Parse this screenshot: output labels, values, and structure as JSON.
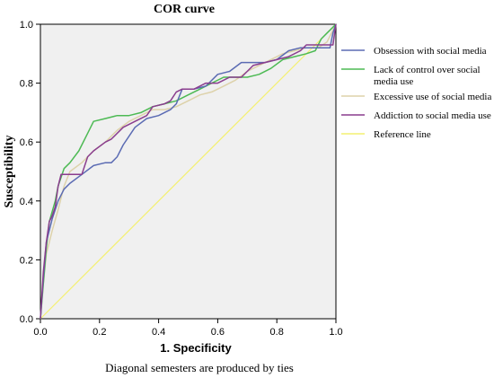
{
  "chart_data": {
    "type": "line",
    "title": "COR curve",
    "xlabel": "1.   Specificity",
    "ylabel": "Susceptibility",
    "xlim": [
      0,
      1
    ],
    "ylim": [
      0,
      1
    ],
    "x_ticks": [
      "0.0",
      "0.2",
      "0.4",
      "0.6",
      "0.8",
      "1.0"
    ],
    "y_ticks": [
      "0.0",
      "0.2",
      "0.4",
      "0.6",
      "0.8",
      "1.0"
    ],
    "grid": false,
    "plot_background": "#f0f0f0",
    "legend_position": "right",
    "footnote": "Diagonal semesters are produced by ties",
    "series": [
      {
        "name": "Obsession with social media",
        "color": "#5b6bb3",
        "points": [
          [
            0,
            0
          ],
          [
            0.01,
            0.14
          ],
          [
            0.02,
            0.26
          ],
          [
            0.04,
            0.34
          ],
          [
            0.06,
            0.4
          ],
          [
            0.08,
            0.44
          ],
          [
            0.1,
            0.46
          ],
          [
            0.14,
            0.49
          ],
          [
            0.18,
            0.52
          ],
          [
            0.22,
            0.53
          ],
          [
            0.24,
            0.53
          ],
          [
            0.26,
            0.55
          ],
          [
            0.28,
            0.59
          ],
          [
            0.32,
            0.65
          ],
          [
            0.36,
            0.68
          ],
          [
            0.4,
            0.69
          ],
          [
            0.44,
            0.71
          ],
          [
            0.46,
            0.73
          ],
          [
            0.48,
            0.78
          ],
          [
            0.52,
            0.78
          ],
          [
            0.56,
            0.79
          ],
          [
            0.6,
            0.83
          ],
          [
            0.64,
            0.84
          ],
          [
            0.68,
            0.87
          ],
          [
            0.72,
            0.87
          ],
          [
            0.76,
            0.87
          ],
          [
            0.8,
            0.88
          ],
          [
            0.84,
            0.91
          ],
          [
            0.88,
            0.92
          ],
          [
            0.92,
            0.92
          ],
          [
            0.96,
            0.92
          ],
          [
            0.98,
            0.92
          ],
          [
            0.99,
            0.97
          ],
          [
            1,
            1
          ]
        ]
      },
      {
        "name": "Lack of control over social media use",
        "color": "#4dba54",
        "points": [
          [
            0,
            0
          ],
          [
            0.01,
            0.12
          ],
          [
            0.02,
            0.24
          ],
          [
            0.03,
            0.33
          ],
          [
            0.05,
            0.4
          ],
          [
            0.06,
            0.45
          ],
          [
            0.08,
            0.51
          ],
          [
            0.1,
            0.53
          ],
          [
            0.13,
            0.57
          ],
          [
            0.16,
            0.63
          ],
          [
            0.18,
            0.67
          ],
          [
            0.22,
            0.68
          ],
          [
            0.26,
            0.69
          ],
          [
            0.3,
            0.69
          ],
          [
            0.34,
            0.7
          ],
          [
            0.38,
            0.72
          ],
          [
            0.42,
            0.73
          ],
          [
            0.46,
            0.74
          ],
          [
            0.5,
            0.76
          ],
          [
            0.54,
            0.78
          ],
          [
            0.58,
            0.8
          ],
          [
            0.62,
            0.82
          ],
          [
            0.66,
            0.82
          ],
          [
            0.7,
            0.82
          ],
          [
            0.74,
            0.83
          ],
          [
            0.78,
            0.85
          ],
          [
            0.82,
            0.88
          ],
          [
            0.86,
            0.89
          ],
          [
            0.9,
            0.9
          ],
          [
            0.93,
            0.91
          ],
          [
            0.95,
            0.95
          ],
          [
            0.97,
            0.97
          ],
          [
            1,
            1
          ]
        ]
      },
      {
        "name": "Excessive use of social media",
        "color": "#ddd2aa",
        "points": [
          [
            0,
            0
          ],
          [
            0.01,
            0.12
          ],
          [
            0.02,
            0.22
          ],
          [
            0.04,
            0.3
          ],
          [
            0.06,
            0.37
          ],
          [
            0.08,
            0.45
          ],
          [
            0.1,
            0.5
          ],
          [
            0.14,
            0.53
          ],
          [
            0.18,
            0.57
          ],
          [
            0.22,
            0.6
          ],
          [
            0.26,
            0.64
          ],
          [
            0.3,
            0.67
          ],
          [
            0.34,
            0.69
          ],
          [
            0.38,
            0.71
          ],
          [
            0.42,
            0.71
          ],
          [
            0.46,
            0.72
          ],
          [
            0.5,
            0.74
          ],
          [
            0.54,
            0.76
          ],
          [
            0.58,
            0.77
          ],
          [
            0.62,
            0.79
          ],
          [
            0.66,
            0.81
          ],
          [
            0.7,
            0.84
          ],
          [
            0.74,
            0.86
          ],
          [
            0.78,
            0.88
          ],
          [
            0.82,
            0.9
          ],
          [
            0.86,
            0.91
          ],
          [
            0.9,
            0.92
          ],
          [
            0.94,
            0.92
          ],
          [
            0.97,
            0.94
          ],
          [
            1,
            1
          ]
        ]
      },
      {
        "name": "Addiction to social media use",
        "color": "#8a3d8e",
        "points": [
          [
            0,
            0
          ],
          [
            0.01,
            0.16
          ],
          [
            0.02,
            0.26
          ],
          [
            0.03,
            0.33
          ],
          [
            0.04,
            0.35
          ],
          [
            0.05,
            0.38
          ],
          [
            0.06,
            0.45
          ],
          [
            0.07,
            0.49
          ],
          [
            0.1,
            0.49
          ],
          [
            0.14,
            0.49
          ],
          [
            0.16,
            0.55
          ],
          [
            0.18,
            0.57
          ],
          [
            0.22,
            0.6
          ],
          [
            0.24,
            0.61
          ],
          [
            0.28,
            0.65
          ],
          [
            0.32,
            0.67
          ],
          [
            0.36,
            0.69
          ],
          [
            0.38,
            0.72
          ],
          [
            0.42,
            0.73
          ],
          [
            0.44,
            0.74
          ],
          [
            0.46,
            0.77
          ],
          [
            0.48,
            0.78
          ],
          [
            0.52,
            0.78
          ],
          [
            0.56,
            0.8
          ],
          [
            0.6,
            0.8
          ],
          [
            0.64,
            0.82
          ],
          [
            0.68,
            0.82
          ],
          [
            0.72,
            0.86
          ],
          [
            0.76,
            0.87
          ],
          [
            0.8,
            0.88
          ],
          [
            0.84,
            0.89
          ],
          [
            0.88,
            0.91
          ],
          [
            0.9,
            0.93
          ],
          [
            0.93,
            0.93
          ],
          [
            0.95,
            0.93
          ],
          [
            0.99,
            0.93
          ],
          [
            1,
            1
          ]
        ]
      },
      {
        "name": "Reference line",
        "color": "#f4f070",
        "points": [
          [
            0,
            0
          ],
          [
            1,
            1
          ]
        ]
      }
    ]
  }
}
